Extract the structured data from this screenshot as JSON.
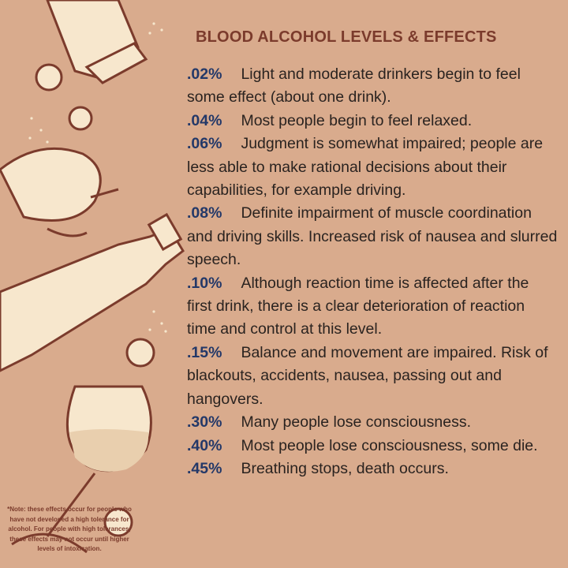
{
  "title": "BLOOD ALCOHOL LEVELS & EFFECTS",
  "levels": [
    {
      "level": ".02%",
      "text": "Light and moderate drinkers begin to feel some effect (about one drink)."
    },
    {
      "level": ".04%",
      "text": "Most people begin to feel relaxed."
    },
    {
      "level": ".06%",
      "text": "Judgment is somewhat impaired; people are less able to make rational decisions about their capabilities, for example driving."
    },
    {
      "level": ".08%",
      "text": "Definite impairment of muscle coordination and driving skills. Increased risk of nausea and slurred speech."
    },
    {
      "level": ".10%",
      "text": "Although reaction time is affected after the first drink, there is a clear deterioration of reaction time and control at this level."
    },
    {
      "level": ".15%",
      "text": "Balance and movement are impaired. Risk of blackouts, accidents, nausea, passing out and hangovers."
    },
    {
      "level": ".30%",
      "text": "Many people lose consciousness."
    },
    {
      "level": ".40%",
      "text": "Most people lose consciousness, some die."
    },
    {
      "level": ".45%",
      "text": "Breathing stops, death occurs."
    }
  ],
  "note": "*Note: these effects occur for people who have not developed a high tolerance for alcohol. For people with high tolerances, these effects may not occur until higher levels of intoxication."
}
